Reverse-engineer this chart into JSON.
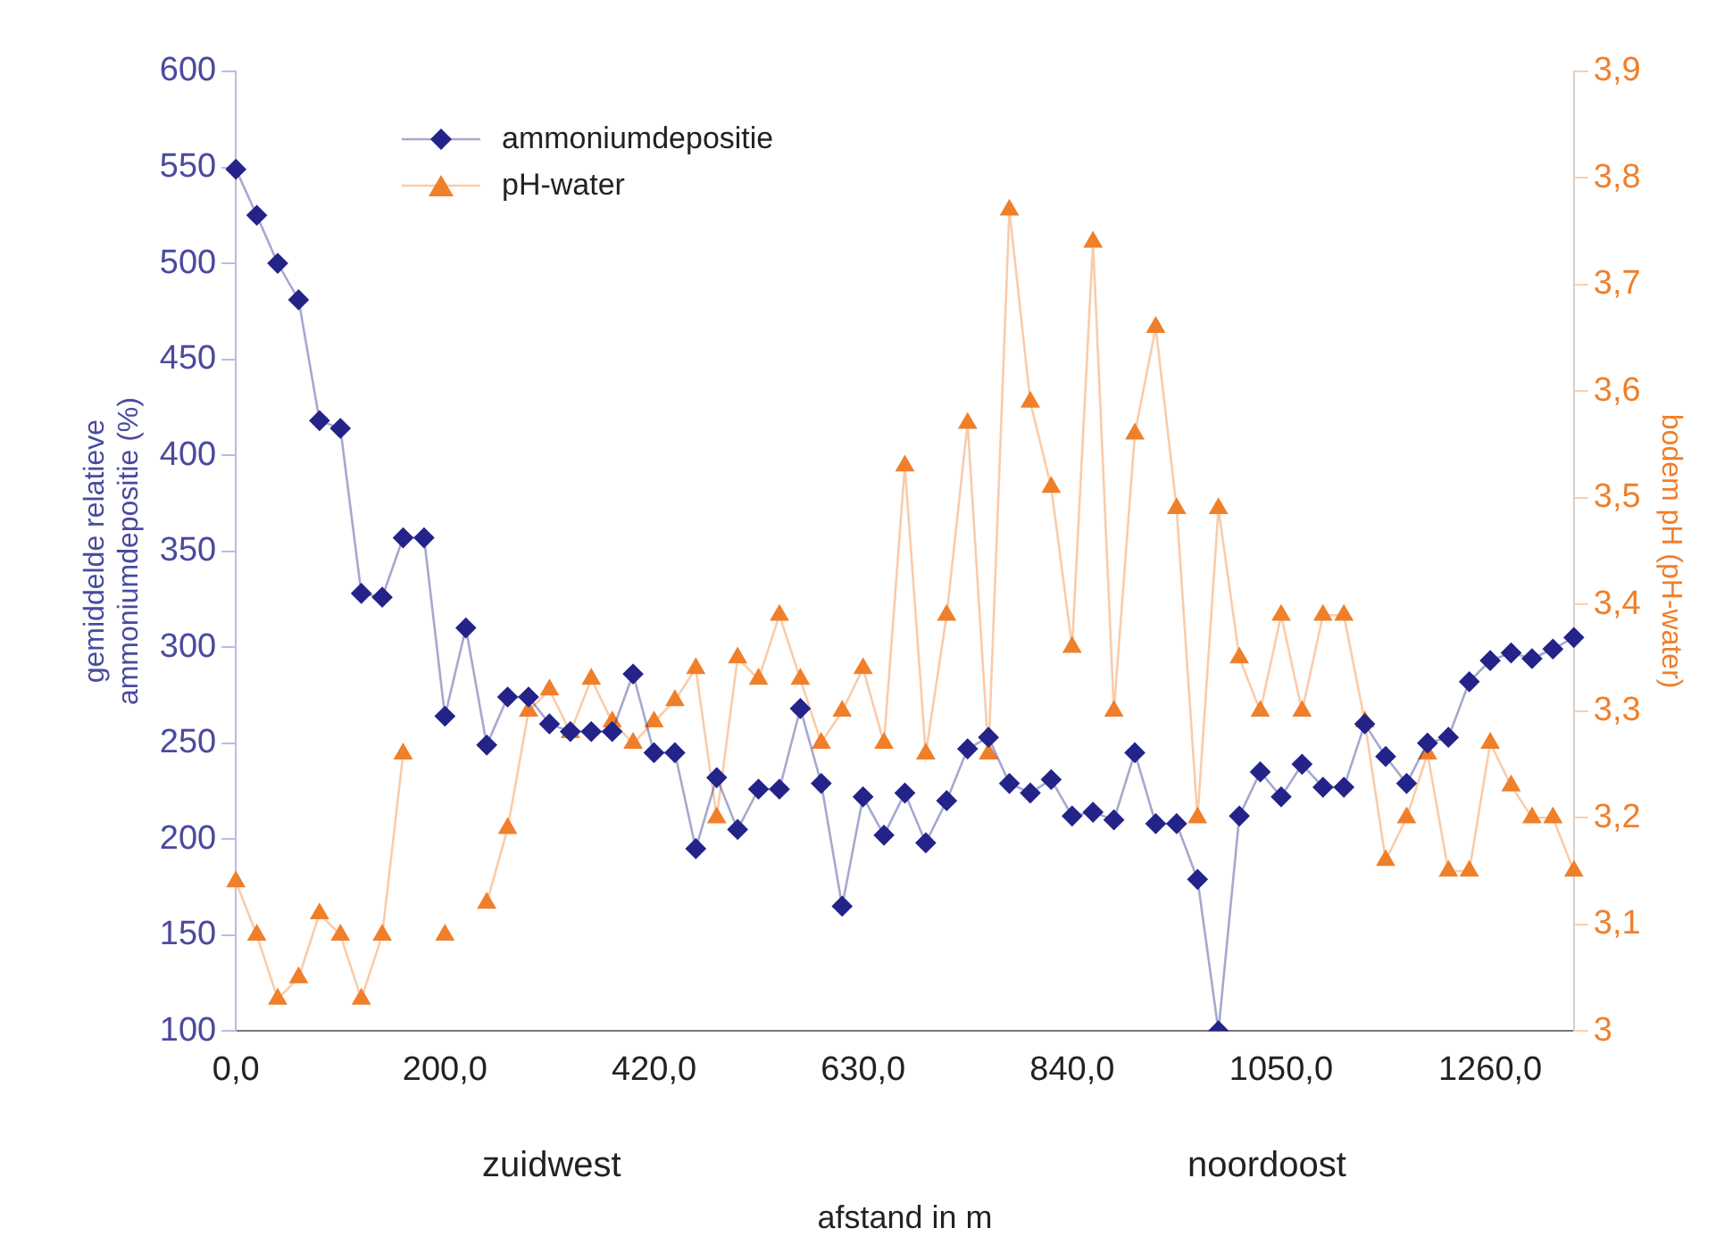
{
  "chart_data": {
    "type": "line",
    "xlabel": "afstand in m",
    "ylabel": "gemiddelde relatieve\nammoniumdepositie (%)",
    "y2label": "bodem pH (pH-water)",
    "categories": [
      "0,0",
      null,
      null,
      null,
      null,
      null,
      null,
      null,
      null,
      null,
      "200,0",
      null,
      null,
      null,
      null,
      null,
      null,
      null,
      null,
      null,
      "420,0",
      null,
      null,
      null,
      null,
      null,
      null,
      null,
      null,
      null,
      "630,0",
      null,
      null,
      null,
      null,
      null,
      null,
      null,
      null,
      null,
      "840,0",
      null,
      null,
      null,
      null,
      null,
      null,
      null,
      null,
      null,
      "1050,0",
      null,
      null,
      null,
      null,
      null,
      null,
      null,
      null,
      null,
      "1260,0",
      null,
      null,
      null,
      null
    ],
    "series": [
      {
        "name": "ammoniumdepositie",
        "color": "#23238a",
        "marker": "diamond",
        "values": [
          549,
          525,
          500,
          481,
          418,
          414,
          328,
          326,
          357,
          357,
          264,
          310,
          249,
          274,
          274,
          260,
          256,
          256,
          256,
          286,
          245,
          245,
          195,
          232,
          205,
          226,
          226,
          268,
          229,
          165,
          222,
          202,
          224,
          198,
          220,
          247,
          253,
          229,
          224,
          231,
          212,
          214,
          210,
          245,
          208,
          208,
          179,
          100,
          212,
          235,
          222,
          239,
          227,
          227,
          260,
          243,
          229,
          250,
          253,
          282,
          293,
          297,
          294,
          299,
          305
        ]
      },
      {
        "name": "pH-water",
        "color": "#f07f2a",
        "marker": "triangle",
        "axis": "y2",
        "values": [
          3.14,
          3.09,
          3.03,
          3.05,
          3.11,
          3.09,
          3.03,
          3.09,
          3.26,
          null,
          3.09,
          null,
          3.12,
          3.19,
          3.3,
          3.32,
          3.28,
          3.33,
          3.29,
          3.27,
          3.29,
          3.31,
          3.34,
          3.2,
          3.35,
          3.33,
          3.39,
          3.33,
          3.27,
          3.3,
          3.34,
          3.27,
          3.53,
          3.26,
          3.39,
          3.57,
          3.26,
          3.77,
          3.59,
          3.51,
          3.36,
          3.74,
          3.3,
          3.56,
          3.66,
          3.49,
          3.2,
          3.49,
          3.35,
          3.3,
          3.39,
          3.3,
          3.39,
          3.39,
          3.29,
          3.16,
          3.2,
          3.26,
          3.15,
          3.15,
          3.27,
          3.23,
          3.2,
          3.2,
          3.15
        ]
      }
    ],
    "ylim": [
      100,
      600
    ],
    "yticks": [
      100,
      150,
      200,
      250,
      300,
      350,
      400,
      450,
      500,
      550,
      600
    ],
    "y2lim": [
      3,
      3.9
    ],
    "y2ticks": [
      {
        "value": 3,
        "label": "3"
      },
      {
        "value": 3.1,
        "label": "3,1"
      },
      {
        "value": 3.2,
        "label": "3,2"
      },
      {
        "value": 3.3,
        "label": "3,3"
      },
      {
        "value": 3.4,
        "label": "3,4"
      },
      {
        "value": 3.5,
        "label": "3,5"
      },
      {
        "value": 3.6,
        "label": "3,6"
      },
      {
        "value": 3.7,
        "label": "3,7"
      },
      {
        "value": 3.8,
        "label": "3,8"
      },
      {
        "value": 3.9,
        "label": "3,9"
      }
    ],
    "annotations": [
      "zuidwest",
      "noordoost"
    ],
    "legend": "top left",
    "grid": false,
    "line_style": "solid"
  }
}
